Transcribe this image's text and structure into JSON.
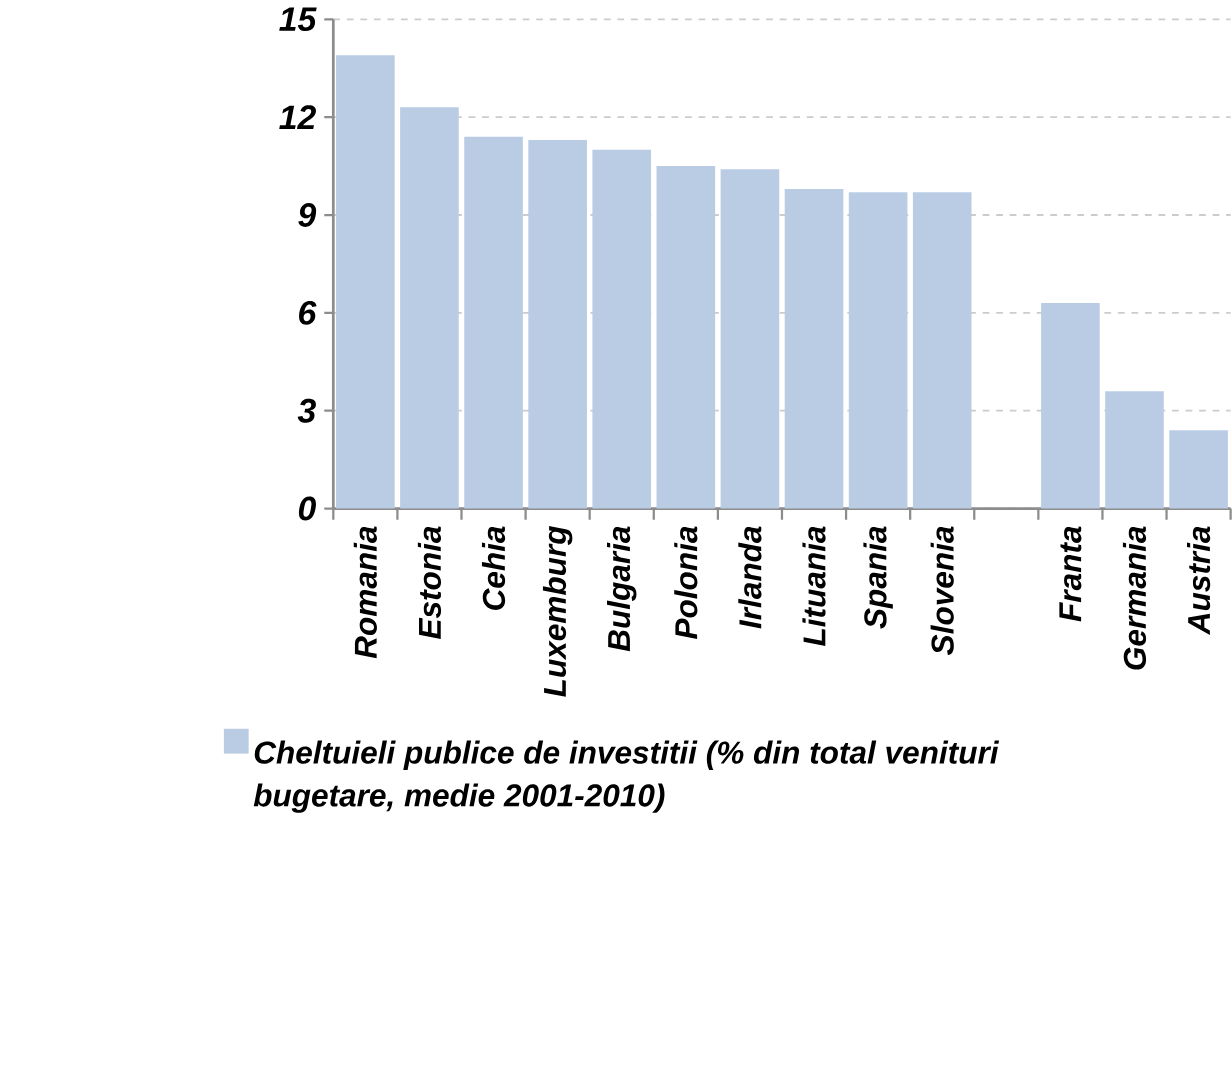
{
  "chart_data": {
    "type": "bar",
    "categories": [
      "Romania",
      "Estonia",
      "Cehia",
      "Luxemburg",
      "Bulgaria",
      "Polonia",
      "Irlanda",
      "Lituania",
      "Spania",
      "Slovenia",
      null,
      "Franta",
      "Germania",
      "Austria"
    ],
    "series": [
      {
        "name": "Cheltuieli publice de investitii (% din total venituri bugetare, medie 2001-2010)",
        "color": "#b9cce4",
        "values": [
          13.9,
          12.3,
          11.4,
          11.3,
          11.0,
          10.5,
          10.4,
          9.8,
          9.7,
          9.7,
          null,
          6.3,
          3.6,
          2.4
        ]
      }
    ],
    "ylim": [
      0,
      15
    ],
    "yticks": [
      0,
      3,
      6,
      9,
      12,
      15
    ],
    "grid": "y",
    "legend": "bottom"
  }
}
